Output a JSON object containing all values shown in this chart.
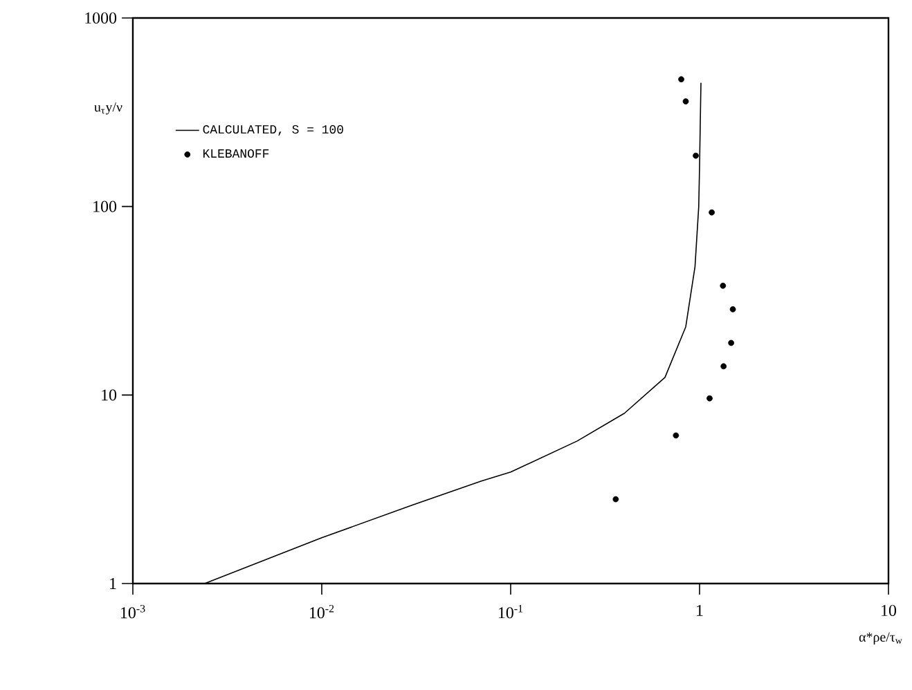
{
  "chart_data": {
    "type": "line",
    "xlabel": "α*ρe/τ$_{w}$",
    "ylabel": "u$_{τ}$y/ν",
    "log": "xy",
    "xlim": [
      0.001,
      10
    ],
    "ylim": [
      1,
      1000
    ],
    "xticks": [
      {
        "value": 0.001,
        "label": "10$^{-3}$"
      },
      {
        "value": 0.01,
        "label": "10$^{-2}$"
      },
      {
        "value": 0.1,
        "label": "10$^{-1}$"
      },
      1,
      10
    ],
    "yticks": [
      1,
      10,
      100,
      1000
    ],
    "grid": false,
    "legend": "left",
    "series": [
      {
        "name": "CALCULATED, S = 100",
        "color": "#000000",
        "marker": "none",
        "line_style": "solid",
        "x": [
          0.0024,
          0.01,
          0.03,
          0.07,
          0.1,
          0.225,
          0.4,
          0.656,
          0.845,
          0.946,
          0.99,
          1.0,
          1.01,
          1.017
        ],
        "values": [
          1,
          1.75,
          2.6,
          3.5,
          3.9,
          5.7,
          8,
          12.4,
          23,
          48,
          100,
          164,
          300,
          453
        ]
      },
      {
        "name": "KLEBANOFF",
        "type": "scatter",
        "color": "#000000",
        "marker": "circle",
        "x": [
          0.8,
          0.845,
          0.955,
          1.16,
          1.33,
          1.5,
          1.47,
          1.34,
          1.13,
          0.75,
          0.36
        ],
        "values": [
          473,
          361,
          186,
          93,
          38,
          28.5,
          18.9,
          14.2,
          9.6,
          6.1,
          2.8
        ]
      }
    ]
  }
}
